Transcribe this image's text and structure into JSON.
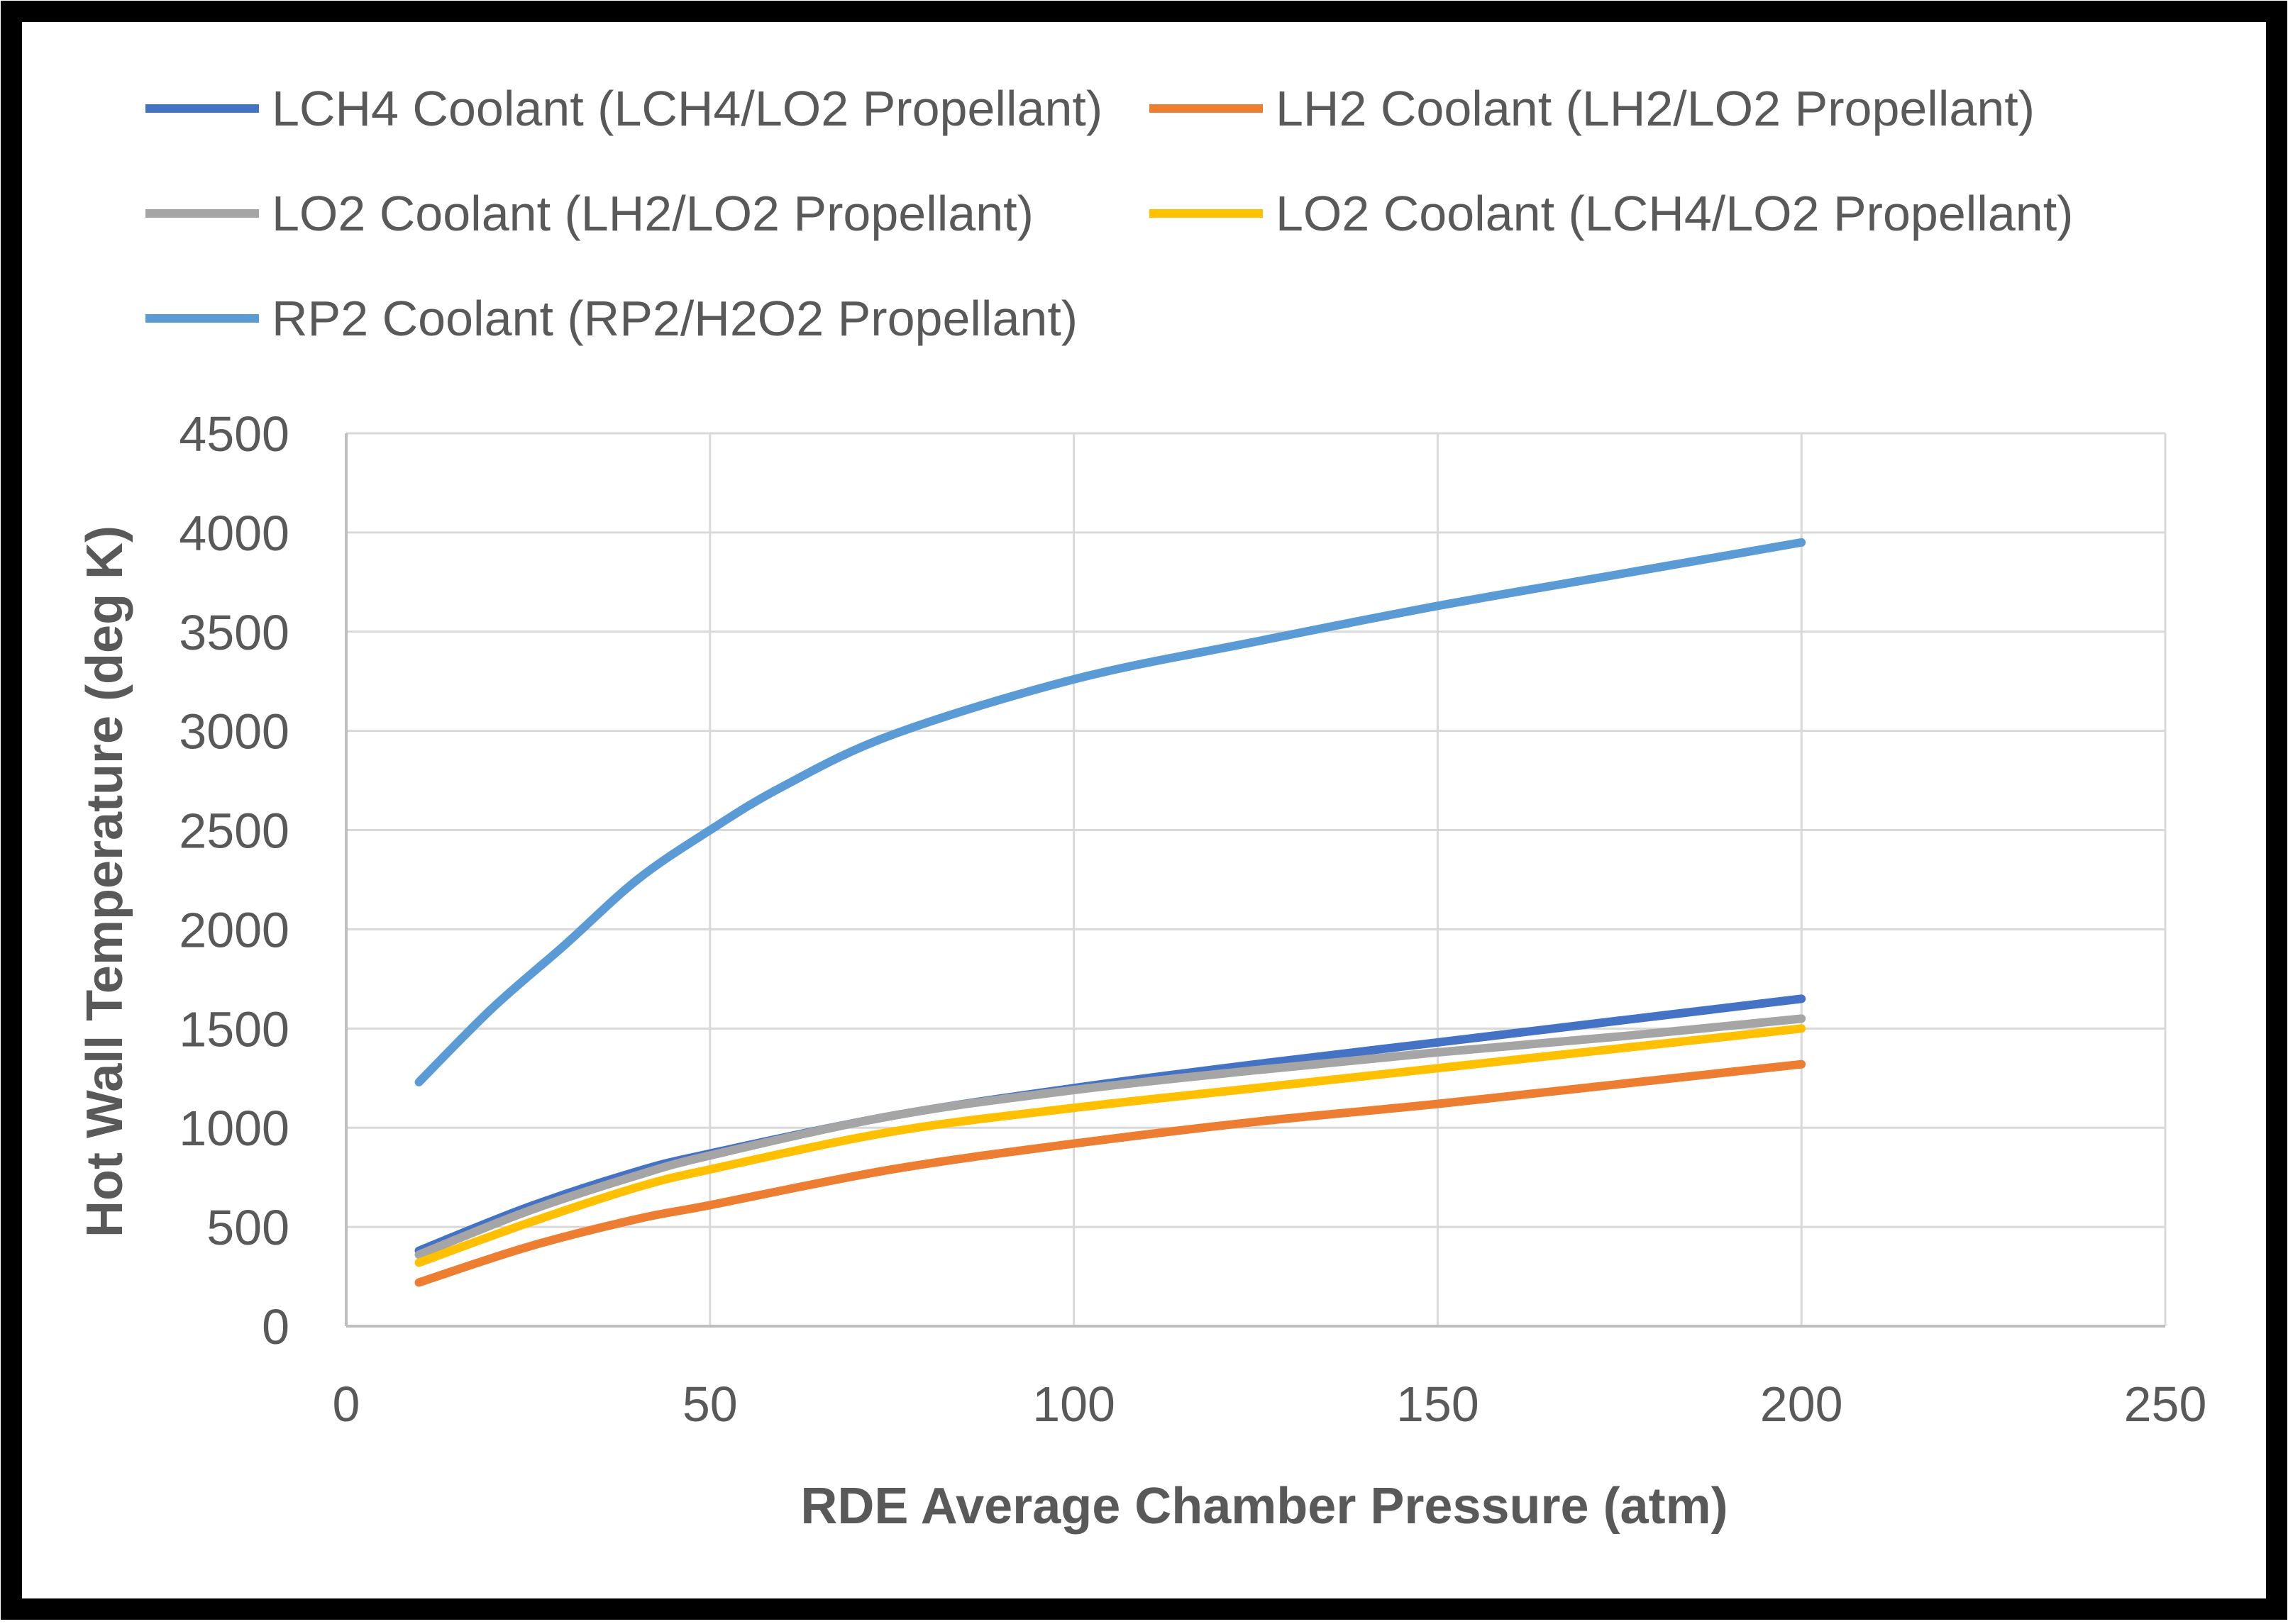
{
  "chart_data": {
    "type": "line",
    "title": "",
    "xlabel": "RDE Average Chamber Pressure (atm)",
    "ylabel": "Hot Wall Temperature (deg K)",
    "xlim": [
      0,
      250
    ],
    "ylim": [
      0,
      4500
    ],
    "xticks": [
      0,
      50,
      100,
      150,
      200,
      250
    ],
    "yticks": [
      0,
      500,
      1000,
      1500,
      2000,
      2500,
      3000,
      3500,
      4000,
      4500
    ],
    "xtick_labels": [
      "0",
      "50",
      "100",
      "150",
      "200",
      "250"
    ],
    "ytick_labels": [
      "0",
      "500",
      "1000",
      "1500",
      "2000",
      "2500",
      "3000",
      "3500",
      "4000",
      "4500"
    ],
    "grid": true,
    "legend_position": "top",
    "series": [
      {
        "name": "LCH4 Coolant (LCH4/LO2 Propellant)",
        "color": "#4472C4",
        "x": [
          10,
          25,
          40,
          50,
          75,
          100,
          125,
          150,
          175,
          200
        ],
        "y": [
          380,
          600,
          780,
          870,
          1060,
          1200,
          1320,
          1430,
          1540,
          1650
        ]
      },
      {
        "name": "LH2 Coolant (LH2/LO2 Propellant)",
        "color": "#ED7D31",
        "x": [
          10,
          25,
          40,
          50,
          75,
          100,
          125,
          150,
          175,
          200
        ],
        "y": [
          220,
          400,
          540,
          610,
          790,
          920,
          1030,
          1120,
          1220,
          1320
        ]
      },
      {
        "name": "LO2 Coolant (LH2/LO2 Propellant)",
        "color": "#A5A5A5",
        "x": [
          10,
          25,
          40,
          50,
          75,
          100,
          125,
          150,
          175,
          200
        ],
        "y": [
          360,
          580,
          760,
          860,
          1060,
          1190,
          1290,
          1380,
          1460,
          1550
        ]
      },
      {
        "name": "LO2 Coolant (LCH4/LO2 Propellant)",
        "color": "#FFC000",
        "x": [
          10,
          25,
          40,
          50,
          75,
          100,
          125,
          150,
          175,
          200
        ],
        "y": [
          320,
          520,
          700,
          790,
          980,
          1100,
          1200,
          1300,
          1400,
          1500
        ]
      },
      {
        "name": "RP2 Coolant (RP2/H2O2 Propellant)",
        "color": "#5B9BD5",
        "x": [
          10,
          20,
          30,
          40,
          50,
          60,
          75,
          100,
          125,
          150,
          175,
          200
        ],
        "y": [
          1230,
          1600,
          1920,
          2250,
          2500,
          2720,
          2980,
          3260,
          3450,
          3630,
          3790,
          3950
        ]
      }
    ]
  }
}
